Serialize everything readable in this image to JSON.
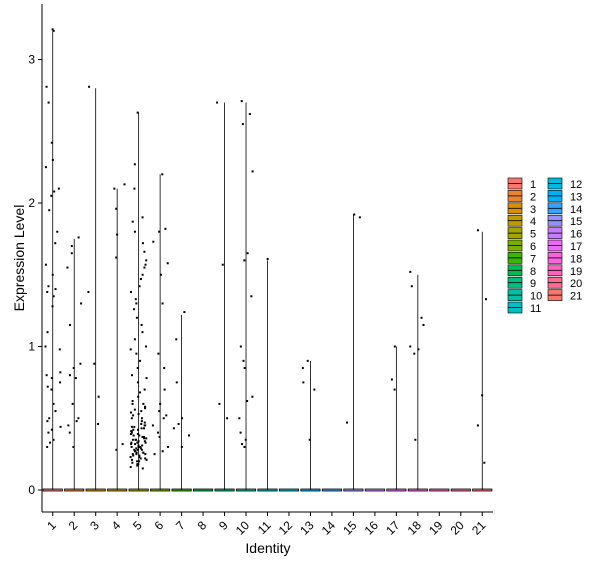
{
  "chart_data": {
    "type": "violin-jitter",
    "title": "",
    "xlabel": "Identity",
    "ylabel": "Expression Level",
    "ylim": [
      -0.15,
      3.35
    ],
    "yticks": [
      0,
      1,
      2,
      3
    ],
    "grid": false,
    "legend_position": "right",
    "categories": [
      "1",
      "2",
      "3",
      "4",
      "5",
      "6",
      "7",
      "8",
      "9",
      "10",
      "11",
      "12",
      "13",
      "14",
      "15",
      "16",
      "17",
      "18",
      "19",
      "20",
      "21"
    ],
    "colors": [
      "#F8766D",
      "#EA8331",
      "#D89000",
      "#C09B00",
      "#A3A500",
      "#7CAE00",
      "#39B600",
      "#00BB4E",
      "#00BF7D",
      "#00C1A3",
      "#00BFC4",
      "#00BAE0",
      "#00B0F6",
      "#35A2FF",
      "#9590FF",
      "#C77CFF",
      "#E76BF3",
      "#FA62DB",
      "#FF62BC",
      "#FF6C91",
      "#F8766D"
    ],
    "max_values": [
      3.2,
      1.75,
      2.8,
      2.1,
      2.63,
      2.2,
      1.22,
      0,
      2.7,
      2.7,
      1.6,
      0,
      0.9,
      0,
      1.92,
      0,
      1.0,
      1.5,
      0,
      0,
      1.8
    ],
    "points": [
      [
        3.21,
        3.2,
        2.81,
        2.7,
        2.42,
        2.3,
        2.25,
        2.1,
        2.08,
        2.05,
        1.95,
        1.8,
        1.72,
        1.57,
        1.5,
        1.42,
        1.4,
        1.38,
        1.35,
        1.28,
        1.1,
        1.0,
        0.98,
        0.82,
        0.8,
        0.78,
        0.75,
        0.72,
        0.7,
        0.6,
        0.55,
        0.5,
        0.48,
        0.44,
        0.42,
        0.4,
        0.35,
        0.33,
        0.3
      ],
      [
        1.76,
        1.7,
        1.65,
        1.55,
        1.3,
        1.15,
        0.88,
        0.85,
        0.8,
        0.78,
        0.6,
        0.5,
        0.48,
        0.45,
        0.4,
        0.3
      ],
      [
        2.81,
        1.38,
        0.88,
        0.65,
        0.46
      ],
      [
        2.13,
        2.1,
        1.96,
        1.78,
        1.62,
        0.32,
        0.28
      ],
      [
        2.63,
        2.27,
        2.1,
        1.9,
        1.87,
        1.8,
        1.72,
        1.66,
        1.6,
        1.57,
        1.55,
        1.5,
        1.47,
        1.42,
        1.38,
        1.33,
        1.3,
        1.26,
        1.2,
        1.15,
        1.1,
        1.05,
        1.0,
        0.98,
        0.95,
        0.9,
        0.85,
        0.8,
        0.78,
        0.75,
        0.7,
        0.68,
        0.65,
        0.62,
        0.6,
        0.58,
        0.56,
        0.54,
        0.52,
        0.5,
        0.48,
        0.46,
        0.45,
        0.44,
        0.43,
        0.42,
        0.41,
        0.4,
        0.39,
        0.38,
        0.37,
        0.36,
        0.35,
        0.34,
        0.33,
        0.32,
        0.31,
        0.3,
        0.29,
        0.28,
        0.27,
        0.26,
        0.25,
        0.24,
        0.23,
        0.22,
        0.21,
        0.2,
        0.19,
        0.18,
        0.17,
        0.16,
        0.15,
        0.39,
        0.37,
        0.35,
        0.33,
        0.31,
        0.29,
        0.27,
        0.25,
        0.5,
        0.47,
        0.44,
        0.41,
        0.38,
        0.35,
        0.32,
        0.3,
        0.28,
        0.26,
        0.24,
        0.22,
        0.2,
        0.18,
        0.6,
        0.57,
        0.55,
        0.53,
        0.45,
        0.43,
        0.42,
        0.36,
        0.34,
        0.33,
        0.3,
        0.28,
        0.26,
        0.25,
        0.23,
        0.21
      ],
      [
        2.2,
        1.82,
        1.8,
        1.73,
        1.58,
        1.5,
        1.3,
        0.95,
        0.85,
        0.7,
        0.6,
        0.55,
        0.52,
        0.5,
        0.45,
        0.4,
        0.37,
        0.3,
        0.27,
        0.25
      ],
      [
        1.24,
        1.05,
        0.75,
        0.5,
        0.46,
        0.43,
        0.38,
        0.3
      ],
      [],
      [
        2.7,
        1.57,
        0.6,
        0.5
      ],
      [
        2.71,
        2.62,
        2.55,
        2.22,
        1.65,
        1.6,
        1.35,
        1.0,
        0.9,
        0.85,
        0.65,
        0.62,
        0.5,
        0.4,
        0.35,
        0.32,
        0.3
      ],
      [
        1.61
      ],
      [],
      [
        0.9,
        0.85,
        0.75,
        0.7,
        0.35
      ],
      [],
      [
        1.92,
        1.9,
        0.47
      ],
      [],
      [
        1.0,
        0.77,
        0.7
      ],
      [
        1.52,
        1.42,
        1.2,
        1.15,
        1.0,
        0.98,
        0.95,
        0.35
      ],
      [],
      [],
      [
        1.81,
        1.33,
        0.66,
        0.45,
        0.19
      ]
    ]
  }
}
